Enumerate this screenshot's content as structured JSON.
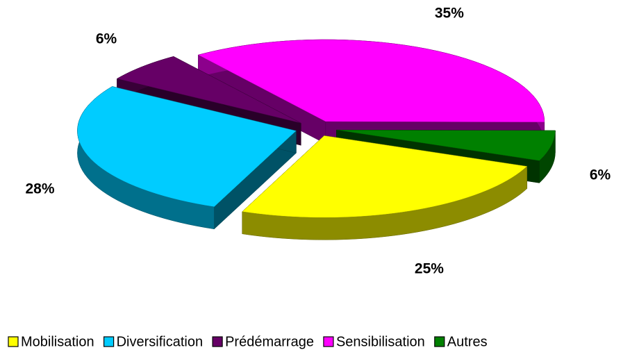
{
  "chart_data": {
    "type": "pie",
    "categories": [
      "Mobilisation",
      "Diversification",
      "Prédémarrage",
      "Sensibilisation",
      "Autres"
    ],
    "values": [
      25,
      28,
      6,
      35,
      6
    ],
    "value_labels": [
      "25%",
      "28%",
      "6%",
      "35%",
      "6%"
    ],
    "colors": [
      "#ffff00",
      "#00ccff",
      "#660066",
      "#ff00ff",
      "#008000"
    ],
    "legend": "bottom"
  }
}
